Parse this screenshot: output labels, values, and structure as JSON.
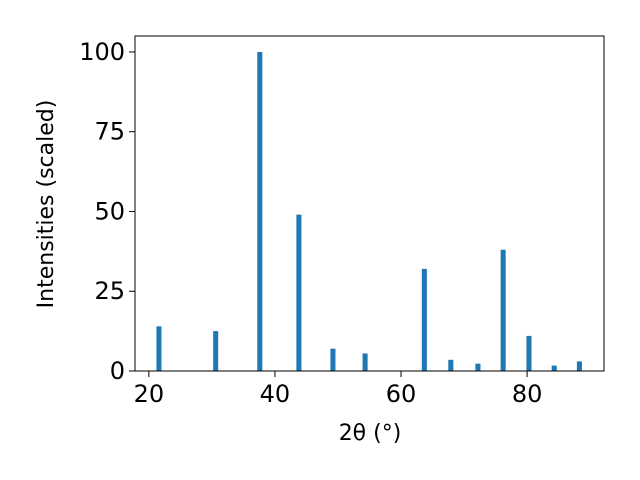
{
  "chart_data": {
    "type": "bar",
    "xlabel": "2θ (°)",
    "ylabel": "Intensities (scaled)",
    "x": [
      21.6,
      30.6,
      37.6,
      43.8,
      49.2,
      54.3,
      63.7,
      67.9,
      72.2,
      76.2,
      80.3,
      84.3,
      88.3
    ],
    "values": [
      14,
      12.5,
      100,
      49,
      7,
      5.5,
      32,
      3.5,
      2.3,
      38,
      11,
      1.7,
      3
    ],
    "color": "#1f77b4",
    "xlim": [
      17.8,
      92.2
    ],
    "xticks": [
      20,
      40,
      60,
      80
    ],
    "ylim": [
      0,
      105
    ],
    "yticks": [
      0,
      25,
      50,
      75,
      100
    ],
    "grid": false
  }
}
